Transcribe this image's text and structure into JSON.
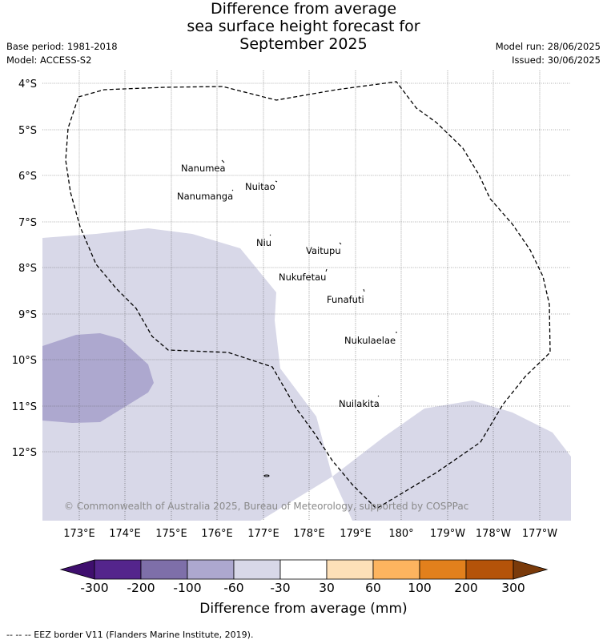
{
  "title": {
    "line1": "Difference from average",
    "line2": "sea surface height forecast for",
    "line3": "September 2025"
  },
  "meta": {
    "base_period": "Base period: 1981-2018",
    "model": "Model: ACCESS-S2",
    "model_run": "Model run: 28/06/2025",
    "issued": "Issued: 30/06/2025"
  },
  "map": {
    "lat_labels": [
      "4°S",
      "5°S",
      "6°S",
      "7°S",
      "8°S",
      "9°S",
      "10°S",
      "11°S",
      "12°S"
    ],
    "lon_labels": [
      "173°E",
      "174°E",
      "175°E",
      "176°E",
      "177°E",
      "178°E",
      "179°E",
      "180°",
      "179°W",
      "178°W",
      "177°W"
    ],
    "islands": [
      "Nanumea",
      "Nuitao",
      "Nanumanga",
      "Niu",
      "Vaitupu",
      "Nukufetau",
      "Funafuti",
      "Nukulaelae",
      "Nuilakita"
    ],
    "copyright": "© Commonwealth of Australia 2025, Bureau of Meteorology, supported by COSPPac"
  },
  "colorbar": {
    "ticks": [
      "-300",
      "-200",
      "-100",
      "-60",
      "-30",
      "30",
      "60",
      "100",
      "200",
      "300"
    ],
    "colors": [
      "#3f0f6e",
      "#54258c",
      "#7e6fa9",
      "#ada8cf",
      "#d8d8e8",
      "#ffffff",
      "#fde0b8",
      "#fdb45f",
      "#e2801c",
      "#b45309",
      "#7a3a0a"
    ],
    "title": "Difference from average (mm)"
  },
  "footer": "--  --  -- EEZ border V11 (Flanders Marine Institute, 2019)."
}
